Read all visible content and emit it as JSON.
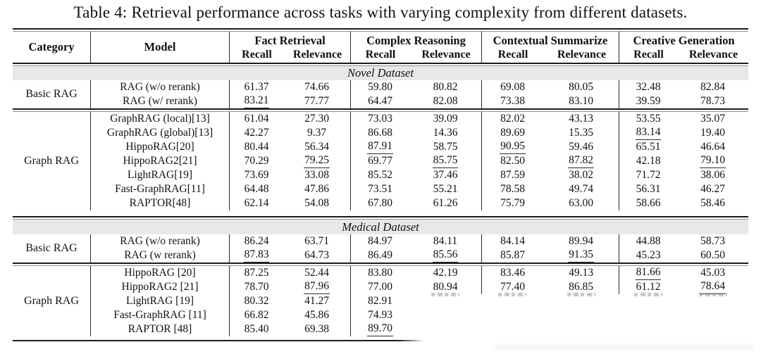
{
  "caption": "Table 4: Retrieval performance across tasks with varying complexity from different datasets.",
  "header": {
    "category": "Category",
    "model": "Model",
    "groups": [
      {
        "label": "Fact Retrieval",
        "subs": [
          "Recall",
          "Relevance"
        ]
      },
      {
        "label": "Complex Reasoning",
        "subs": [
          "Recall",
          "Relevance"
        ]
      },
      {
        "label": "Contextual Summarize",
        "subs": [
          "Recall",
          "Relevance"
        ]
      },
      {
        "label": "Creative Generation",
        "subs": [
          "Recall",
          "Relevance"
        ]
      }
    ]
  },
  "colors": {
    "rule": "#1c1c1c",
    "band": "#e8e8e8",
    "text": "#111111"
  },
  "sections": [
    {
      "label": "Novel Dataset",
      "blocks": [
        {
          "category": "Basic RAG",
          "rows": [
            {
              "model": "RAG (w/o rerank)",
              "vals": [
                {
                  "v": "61.37"
                },
                {
                  "v": "74.66"
                },
                {
                  "v": "59.80"
                },
                {
                  "v": "80.82"
                },
                {
                  "v": "69.08"
                },
                {
                  "v": "80.05"
                },
                {
                  "v": "32.48"
                },
                {
                  "v": "82.84"
                }
              ]
            },
            {
              "model": "RAG (w/ rerank)",
              "vals": [
                {
                  "v": "83.21",
                  "u": true
                },
                {
                  "v": "77.77"
                },
                {
                  "v": "64.47"
                },
                {
                  "v": "82.08"
                },
                {
                  "v": "73.38"
                },
                {
                  "v": "83.10"
                },
                {
                  "v": "39.59"
                },
                {
                  "v": "78.73"
                }
              ]
            }
          ]
        },
        {
          "category": "Graph RAG",
          "rows": [
            {
              "model": "GraphRAG (local)[13]",
              "vals": [
                {
                  "v": "61.04"
                },
                {
                  "v": "27.30"
                },
                {
                  "v": "73.03"
                },
                {
                  "v": "39.09"
                },
                {
                  "v": "82.02"
                },
                {
                  "v": "43.13"
                },
                {
                  "v": "53.55"
                },
                {
                  "v": "35.07"
                }
              ]
            },
            {
              "model": "GraphRAG (global)[13]",
              "vals": [
                {
                  "v": "42.27"
                },
                {
                  "v": "9.37"
                },
                {
                  "v": "86.68"
                },
                {
                  "v": "14.36"
                },
                {
                  "v": "89.69"
                },
                {
                  "v": "15.35"
                },
                {
                  "v": "83.14",
                  "u": true
                },
                {
                  "v": "19.40"
                }
              ]
            },
            {
              "model": "HippoRAG[20]",
              "vals": [
                {
                  "v": "80.44"
                },
                {
                  "v": "56.34"
                },
                {
                  "v": "87.91",
                  "u": true
                },
                {
                  "v": "58.75"
                },
                {
                  "v": "90.95",
                  "u": true
                },
                {
                  "v": "59.46"
                },
                {
                  "v": "65.51"
                },
                {
                  "v": "46.64"
                }
              ]
            },
            {
              "model": "HippoRAG2[21]",
              "vals": [
                {
                  "v": "70.29"
                },
                {
                  "v": "79.25",
                  "u": true
                },
                {
                  "v": "69.77"
                },
                {
                  "v": "85.75",
                  "u": true
                },
                {
                  "v": "82.50"
                },
                {
                  "v": "87.82",
                  "u": true
                },
                {
                  "v": "42.18"
                },
                {
                  "v": "79.10",
                  "u": true
                }
              ]
            },
            {
              "model": "LightRAG[19]",
              "vals": [
                {
                  "v": "73.69"
                },
                {
                  "v": "33.08"
                },
                {
                  "v": "85.52"
                },
                {
                  "v": "37.46"
                },
                {
                  "v": "87.59"
                },
                {
                  "v": "38.02"
                },
                {
                  "v": "71.72"
                },
                {
                  "v": "38.06"
                }
              ]
            },
            {
              "model": "Fast-GraphRAG[11]",
              "vals": [
                {
                  "v": "64.48"
                },
                {
                  "v": "47.86"
                },
                {
                  "v": "73.51"
                },
                {
                  "v": "55.21"
                },
                {
                  "v": "78.58"
                },
                {
                  "v": "49.74"
                },
                {
                  "v": "56.31"
                },
                {
                  "v": "46.27"
                }
              ]
            },
            {
              "model": "RAPTOR[48]",
              "vals": [
                {
                  "v": "62.14"
                },
                {
                  "v": "54.08"
                },
                {
                  "v": "67.80"
                },
                {
                  "v": "61.26"
                },
                {
                  "v": "75.79"
                },
                {
                  "v": "63.00"
                },
                {
                  "v": "58.66"
                },
                {
                  "v": "58.46"
                }
              ]
            }
          ]
        }
      ]
    },
    {
      "label": "Medical Dataset",
      "blocks": [
        {
          "category": "Basic RAG",
          "rows": [
            {
              "model": "RAG (w/o rerank)",
              "vals": [
                {
                  "v": "86.24"
                },
                {
                  "v": "63.71"
                },
                {
                  "v": "84.97"
                },
                {
                  "v": "84.11"
                },
                {
                  "v": "84.14"
                },
                {
                  "v": "89.94"
                },
                {
                  "v": "44.88"
                },
                {
                  "v": "58.73"
                }
              ]
            },
            {
              "model": "RAG (w rerank)",
              "vals": [
                {
                  "v": "87.83",
                  "u": true
                },
                {
                  "v": "64.73"
                },
                {
                  "v": "86.49"
                },
                {
                  "v": "85.56",
                  "u": true
                },
                {
                  "v": "85.87"
                },
                {
                  "v": "91.35",
                  "u": true
                },
                {
                  "v": "45.23"
                },
                {
                  "v": "60.50"
                }
              ]
            }
          ]
        },
        {
          "category": "Graph RAG",
          "rows": [
            {
              "model": "HippoRAG [20]",
              "vals": [
                {
                  "v": "87.25"
                },
                {
                  "v": "52.44"
                },
                {
                  "v": "83.80"
                },
                {
                  "v": "42.19"
                },
                {
                  "v": "83.46"
                },
                {
                  "v": "49.13"
                },
                {
                  "v": "81.66",
                  "u": true
                },
                {
                  "v": "45.03"
                }
              ]
            },
            {
              "model": "HippoRAG2 [21]",
              "vals": [
                {
                  "v": "78.70"
                },
                {
                  "v": "87.96",
                  "u": true
                },
                {
                  "v": "77.00"
                },
                {
                  "v": "80.94"
                },
                {
                  "v": "77.40"
                },
                {
                  "v": "86.85"
                },
                {
                  "v": "61.12"
                },
                {
                  "v": "78.64",
                  "u": true
                }
              ]
            },
            {
              "model": "LightRAG [19]",
              "vals": [
                {
                  "v": "80.32"
                },
                {
                  "v": "41.27"
                },
                {
                  "v": "82.91"
                },
                {
                  "v": "",
                  "erased": true,
                  "ghost": true
                },
                {
                  "v": "",
                  "erased": true,
                  "ghost": true
                },
                {
                  "v": "",
                  "erased": true,
                  "ghost": true
                },
                {
                  "v": "",
                  "erased": true,
                  "ghost": true
                },
                {
                  "v": "",
                  "erased": true,
                  "ghost": true
                }
              ]
            },
            {
              "model": "Fast-GraphRAG [11]",
              "vals": [
                {
                  "v": "66.82"
                },
                {
                  "v": "45.86"
                },
                {
                  "v": "74.93"
                },
                {
                  "v": "",
                  "erased": true
                },
                {
                  "v": "",
                  "erased": true
                },
                {
                  "v": "",
                  "erased": true
                },
                {
                  "v": "",
                  "erased": true
                },
                {
                  "v": "",
                  "erased": true
                }
              ]
            },
            {
              "model": "RAPTOR [48]",
              "vals": [
                {
                  "v": "85.40"
                },
                {
                  "v": "69.38"
                },
                {
                  "v": "89.70",
                  "u": true
                },
                {
                  "v": "",
                  "erased": true
                },
                {
                  "v": "",
                  "erased": true
                },
                {
                  "v": "",
                  "erased": true
                },
                {
                  "v": "",
                  "erased": true
                },
                {
                  "v": "",
                  "erased": true
                }
              ]
            }
          ]
        }
      ]
    }
  ]
}
